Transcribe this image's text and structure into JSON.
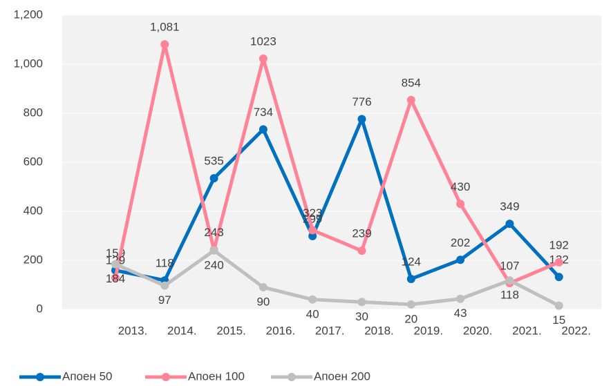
{
  "chart_data": {
    "type": "line",
    "categories": [
      "2013.",
      "2014.",
      "2015.",
      "2016.",
      "2017.",
      "2018.",
      "2019.",
      "2020.",
      "2021.",
      "2022."
    ],
    "series": [
      {
        "name": "Апоен 50",
        "color": "#0070c0",
        "values": [
          159,
          118,
          535,
          734,
          299,
          776,
          124,
          202,
          349,
          132
        ]
      },
      {
        "name": "Апоен 100",
        "color": "#ff8396",
        "values": [
          129,
          1081,
          243,
          1023,
          323,
          239,
          854,
          430,
          107,
          192
        ],
        "value_labels": [
          "129",
          "1,081",
          "243",
          "1023",
          "323",
          "239",
          "854",
          "430",
          "107",
          "192"
        ]
      },
      {
        "name": "Апоен 200",
        "color": "#bfbfbf",
        "values": [
          184,
          97,
          240,
          90,
          40,
          30,
          20,
          43,
          118,
          15
        ]
      }
    ],
    "ylim": [
      0,
      1200
    ],
    "yticks": [
      0,
      200,
      400,
      600,
      800,
      {
        "value": 1000,
        "label": "1,000"
      },
      {
        "value": 1200,
        "label": "1,200"
      }
    ],
    "grid": true,
    "legend": "bottom"
  }
}
